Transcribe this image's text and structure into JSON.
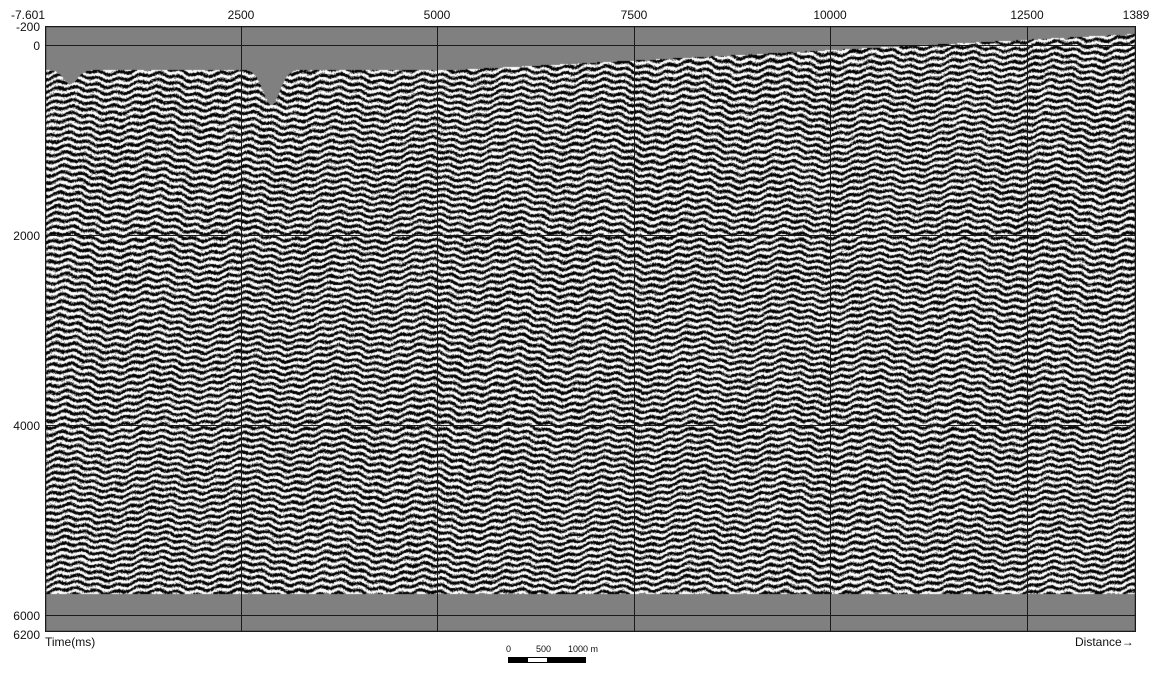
{
  "axes": {
    "x_ticks": [
      "-7.601",
      "2500",
      "5000",
      "7500",
      "10000",
      "12500",
      "1389"
    ],
    "y_ticks": [
      "-200",
      "0",
      "2000",
      "4000",
      "6000",
      "6200"
    ],
    "x_label": "Distance→",
    "y_label": "Time(ms)"
  },
  "scale_bar": {
    "labels": [
      "0",
      "500",
      "1000 m"
    ]
  },
  "colors": {
    "background_fill": "#808080",
    "grid": "#1a1a1a",
    "trace_dark": "#000000",
    "trace_light": "#ffffff",
    "page": "#ffffff"
  }
}
